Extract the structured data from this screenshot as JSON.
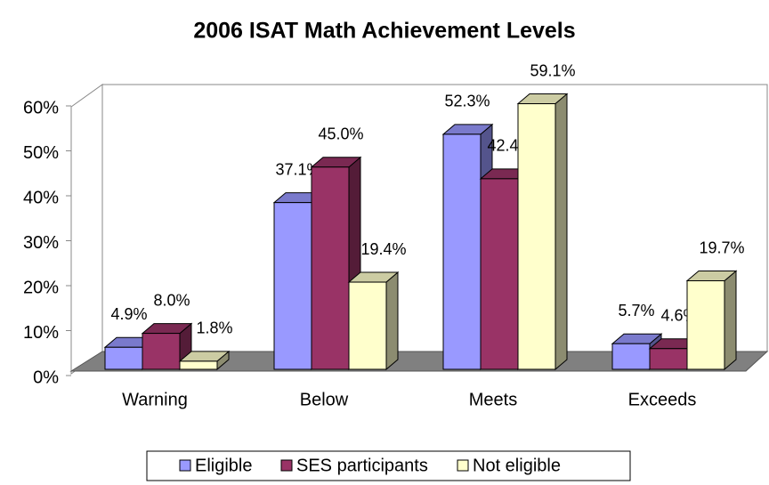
{
  "chart_data": {
    "type": "bar3d",
    "title": "2006 ISAT Math Achievement Levels",
    "categories": [
      "Warning",
      "Below",
      "Meets",
      "Exceeds"
    ],
    "series": [
      {
        "name": "Eligible",
        "color": "#9999ff",
        "values": [
          4.9,
          37.1,
          52.3,
          5.7
        ],
        "value_labels": [
          "4.9%",
          "37.1%",
          "52.3%",
          "5.7%"
        ]
      },
      {
        "name": "SES participants",
        "color": "#993366",
        "values": [
          8.0,
          45.0,
          42.4,
          4.6
        ],
        "value_labels": [
          "8.0%",
          "45.0%",
          "42.4%",
          "4.6%"
        ]
      },
      {
        "name": "Not eligible",
        "color": "#ffffcc",
        "values": [
          1.8,
          19.4,
          59.1,
          19.7
        ],
        "value_labels": [
          "1.8%",
          "19.4%",
          "59.1%",
          "19.7%"
        ]
      }
    ],
    "ylim": [
      0,
      60
    ],
    "yticks": [
      {
        "value": 0,
        "label": "0%"
      },
      {
        "value": 10,
        "label": "10%"
      },
      {
        "value": 20,
        "label": "20%"
      },
      {
        "value": 30,
        "label": "30%"
      },
      {
        "value": 40,
        "label": "40%"
      },
      {
        "value": 50,
        "label": "50%"
      },
      {
        "value": 60,
        "label": "60%"
      }
    ],
    "legend": "bottom"
  }
}
